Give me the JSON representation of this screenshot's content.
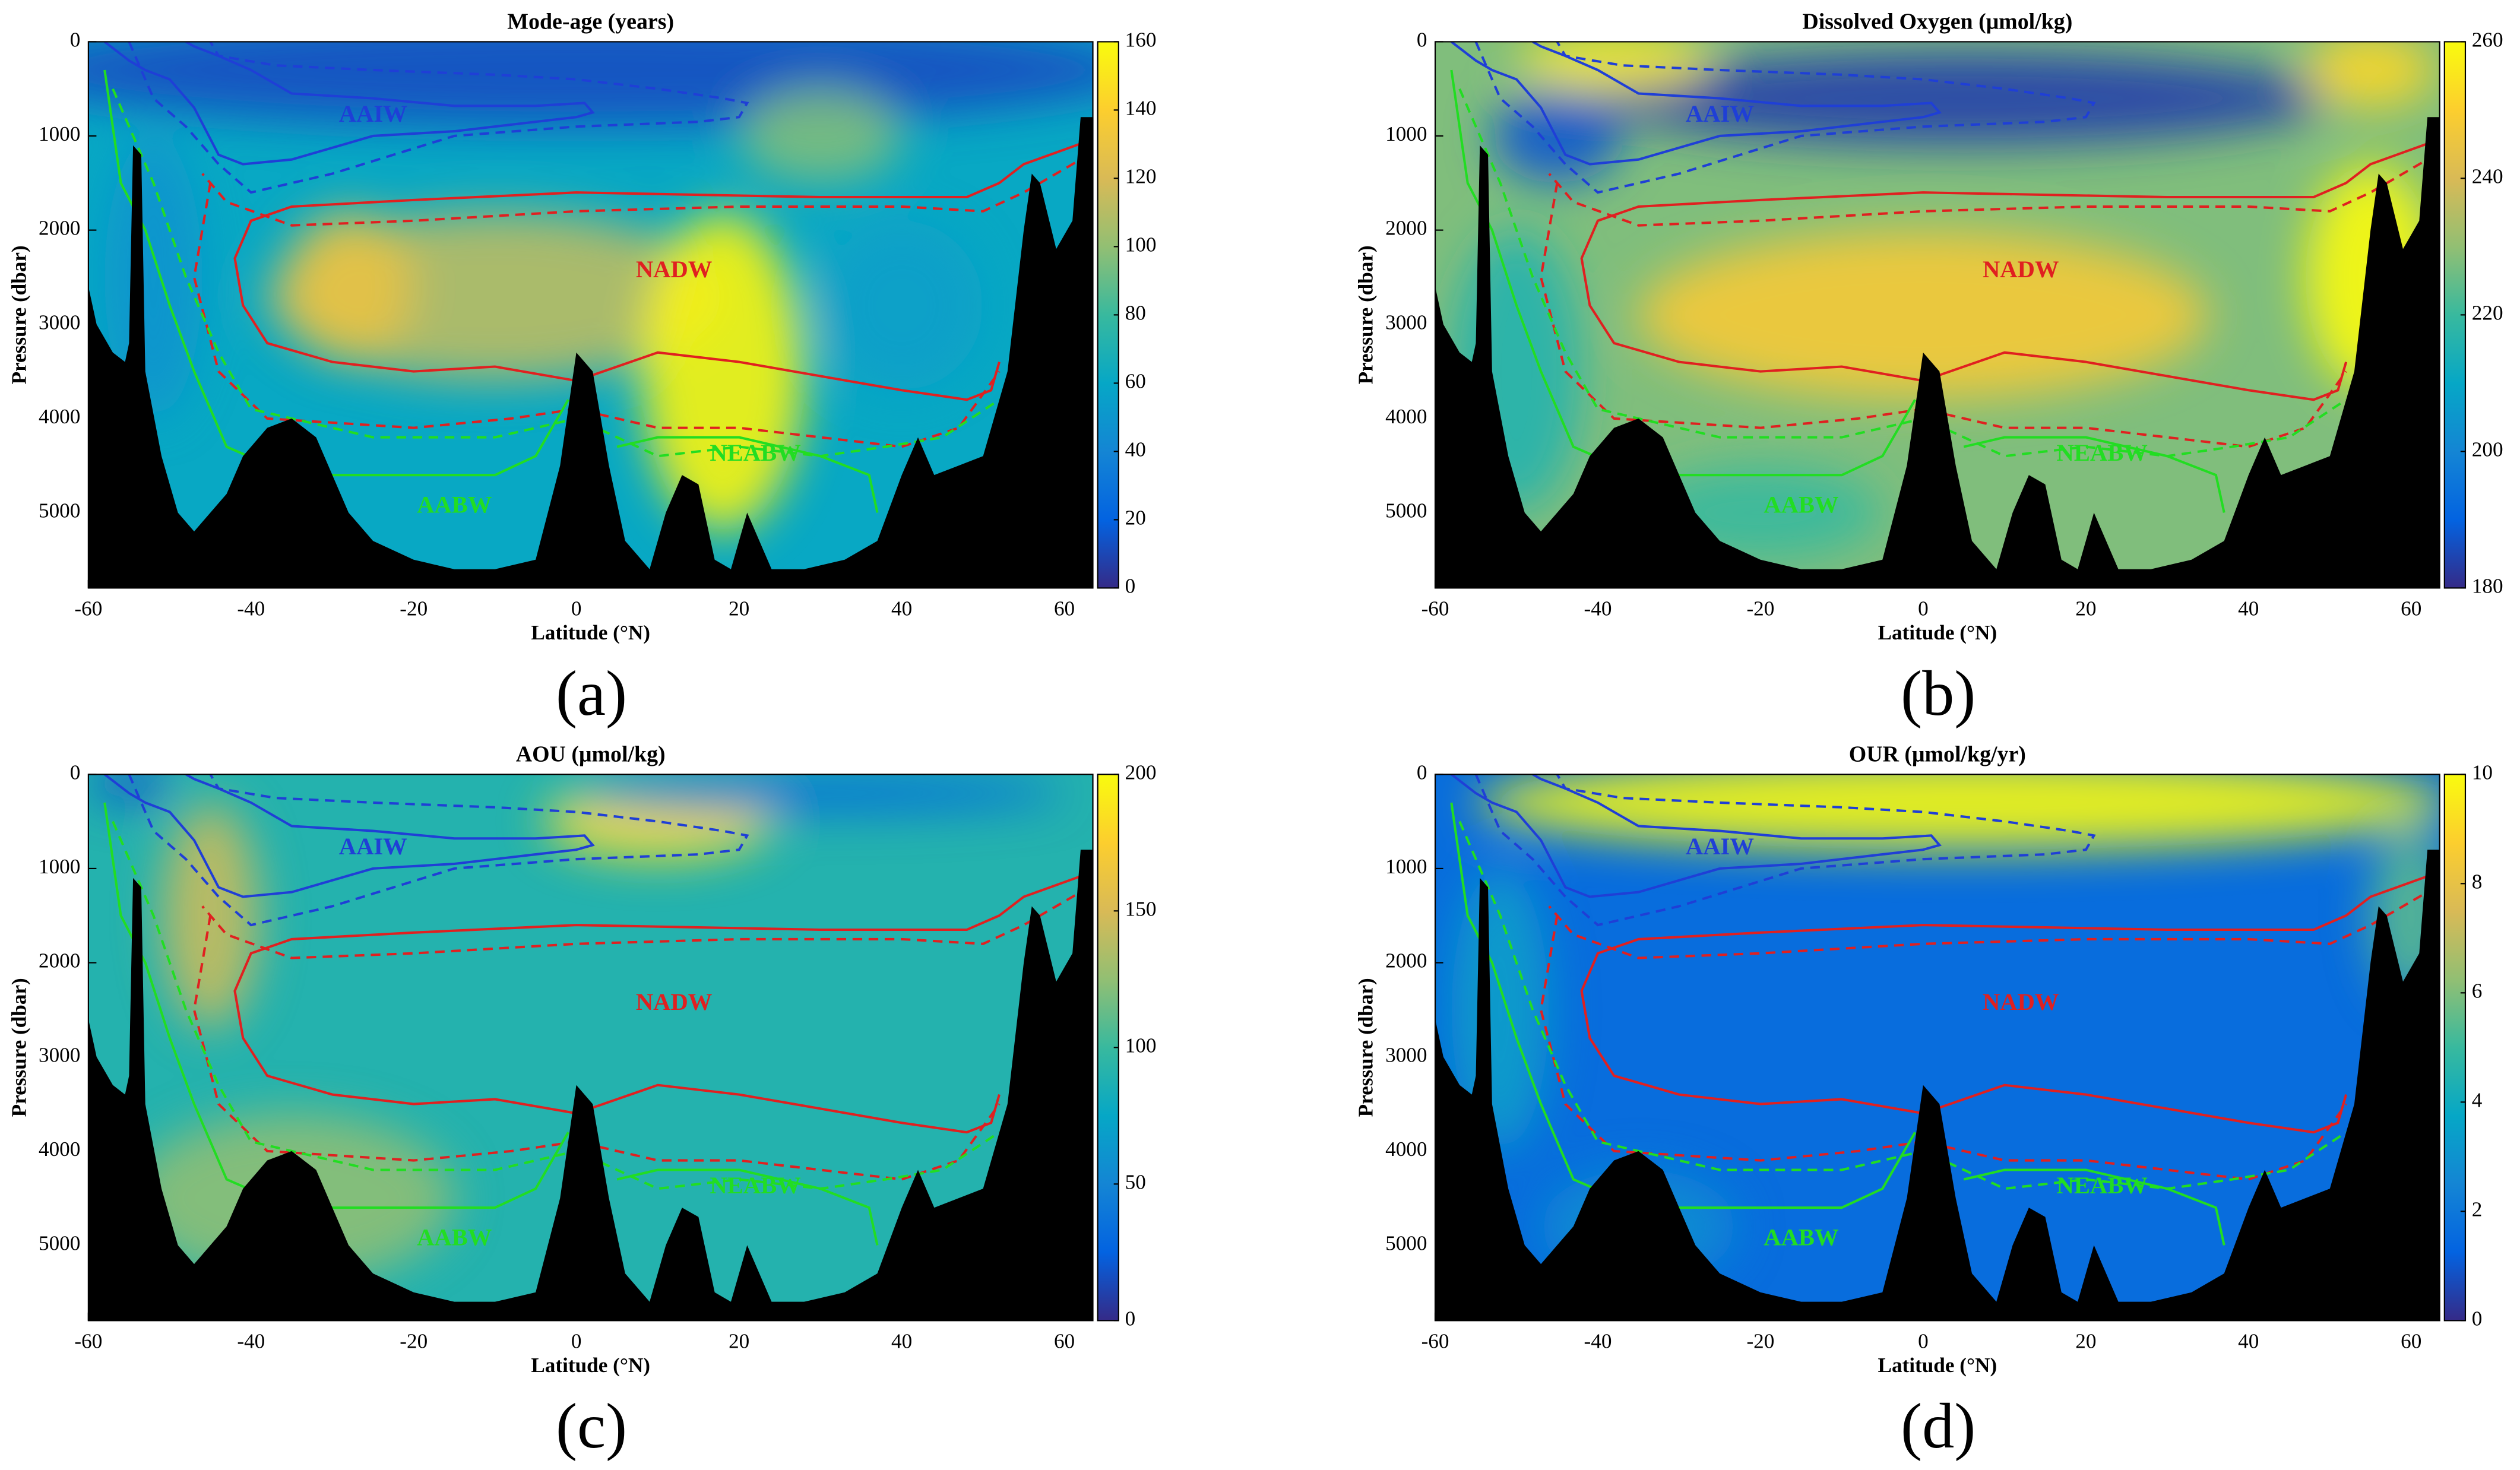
{
  "chart_data": [
    {
      "type": "heatmap",
      "title": "Mode-age (years)",
      "x_label": "Latitude (°N)",
      "y_label": "Pressure (dbar)",
      "panel_label": "(a)",
      "xlim": [
        -60,
        63.5
      ],
      "xticks": [
        -60,
        -40,
        -20,
        0,
        20,
        40,
        60
      ],
      "ylim": [
        0,
        5800
      ],
      "y_inverted": true,
      "yticks": [
        0,
        1000,
        2000,
        3000,
        4000,
        5000
      ],
      "colormap": "parula",
      "clim": [
        0,
        160
      ],
      "cticks": [
        0,
        20,
        40,
        60,
        80,
        100,
        120,
        140,
        160
      ],
      "annotations": [
        "AAIW",
        "NADW",
        "NEABW",
        "AABW"
      ]
    },
    {
      "type": "heatmap",
      "title": "Dissolved Oxygen (μmol/kg)",
      "x_label": "Latitude (°N)",
      "y_label": "Pressure (dbar)",
      "panel_label": "(b)",
      "xlim": [
        -60,
        63.5
      ],
      "xticks": [
        -60,
        -40,
        -20,
        0,
        20,
        40,
        60
      ],
      "ylim": [
        0,
        5800
      ],
      "y_inverted": true,
      "yticks": [
        0,
        1000,
        2000,
        3000,
        4000,
        5000
      ],
      "colormap": "parula",
      "clim": [
        180,
        260
      ],
      "cticks": [
        180,
        200,
        220,
        240,
        260
      ],
      "annotations": [
        "AAIW",
        "NADW",
        "NEABW",
        "AABW"
      ]
    },
    {
      "type": "heatmap",
      "title": "AOU (μmol/kg)",
      "x_label": "Latitude (°N)",
      "y_label": "Pressure (dbar)",
      "panel_label": "(c)",
      "xlim": [
        -60,
        63.5
      ],
      "xticks": [
        -60,
        -40,
        -20,
        0,
        20,
        40,
        60
      ],
      "ylim": [
        0,
        5800
      ],
      "y_inverted": true,
      "yticks": [
        0,
        1000,
        2000,
        3000,
        4000,
        5000
      ],
      "colormap": "parula",
      "clim": [
        0,
        200
      ],
      "cticks": [
        0,
        50,
        100,
        150,
        200
      ],
      "annotations": [
        "AAIW",
        "NADW",
        "NEABW",
        "AABW"
      ]
    },
    {
      "type": "heatmap",
      "title": "OUR (μmol/kg/yr)",
      "x_label": "Latitude (°N)",
      "y_label": "Pressure (dbar)",
      "panel_label": "(d)",
      "xlim": [
        -60,
        63.5
      ],
      "xticks": [
        -60,
        -40,
        -20,
        0,
        20,
        40,
        60
      ],
      "ylim": [
        0,
        5800
      ],
      "y_inverted": true,
      "yticks": [
        0,
        1000,
        2000,
        3000,
        4000,
        5000
      ],
      "colormap": "parula",
      "clim": [
        0,
        10
      ],
      "cticks": [
        0,
        2,
        4,
        6,
        8,
        10
      ],
      "annotations": [
        "AAIW",
        "NADW",
        "NEABW",
        "AABW"
      ]
    }
  ]
}
